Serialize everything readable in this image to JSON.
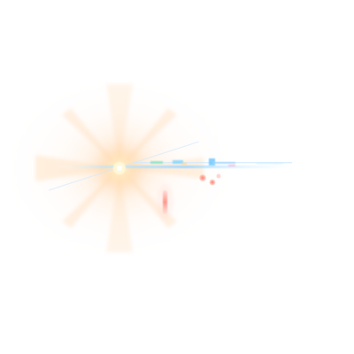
{
  "scene": {
    "kind": "lens-flare",
    "background_color": "#ffffff",
    "flare_core_color": "#fff4c2",
    "flare_glow_color": "#ffb36b",
    "streak_color": "#9fd6ff",
    "ghost_color": "#ff7a6b",
    "accent_green": "#7be0b8"
  }
}
